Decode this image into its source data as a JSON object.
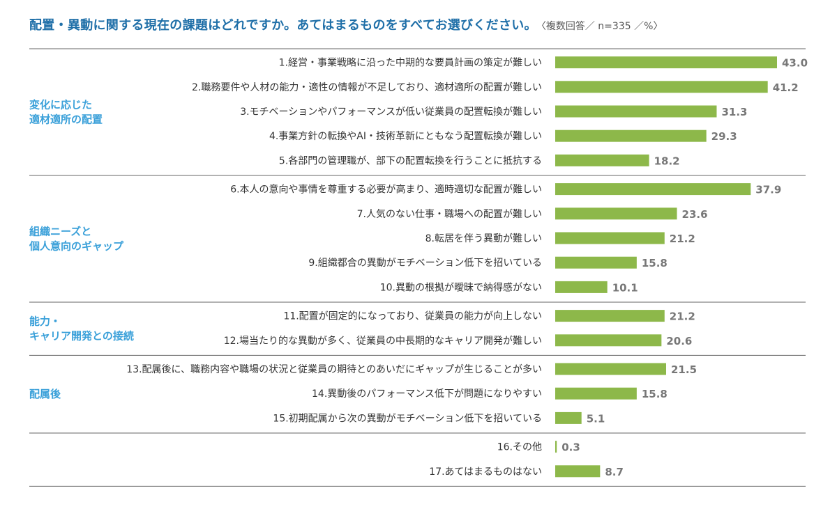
{
  "title": "配置・異動に関する現在の課題はどれですか。あてはまるものをすべてお選びください。",
  "note": "〈複数回答／ n=335 ／%〉",
  "colors": {
    "bar": "#8db84a",
    "title": "#1f6fa8",
    "group": "#3aa0d9",
    "value": "#777777"
  },
  "chart_data": {
    "type": "bar",
    "orientation": "horizontal",
    "xlim": [
      0,
      45
    ],
    "groups": [
      {
        "label": [
          "変化に応じた",
          "適材適所の配置"
        ],
        "items": [
          {
            "label": "1.経営・事業戦略に沿った中期的な要員計画の策定が難しい",
            "value": 43.0,
            "value_text": "43.0"
          },
          {
            "label": "2.職務要件や人材の能力・適性の情報が不足しており、適材適所の配置が難しい",
            "value": 41.2,
            "value_text": "41.2"
          },
          {
            "label": "3.モチベーションやパフォーマンスが低い従業員の配置転換が難しい",
            "value": 31.3,
            "value_text": "31.3"
          },
          {
            "label": "4.事業方針の転換やAI・技術革新にともなう配置転換が難しい",
            "value": 29.3,
            "value_text": "29.3"
          },
          {
            "label": "5.各部門の管理職が、部下の配置転換を行うことに抵抗する",
            "value": 18.2,
            "value_text": "18.2"
          }
        ]
      },
      {
        "label": [
          "組織ニーズと",
          "個人意向のギャップ"
        ],
        "items": [
          {
            "label": "6.本人の意向や事情を尊重する必要が高まり、適時適切な配置が難しい",
            "value": 37.9,
            "value_text": "37.9"
          },
          {
            "label": "7.人気のない仕事・職場への配置が難しい",
            "value": 23.6,
            "value_text": "23.6"
          },
          {
            "label": "8.転居を伴う異動が難しい",
            "value": 21.2,
            "value_text": "21.2"
          },
          {
            "label": "9.組織都合の異動がモチベーション低下を招いている",
            "value": 15.8,
            "value_text": "15.8"
          },
          {
            "label": "10.異動の根拠が曖昧で納得感がない",
            "value": 10.1,
            "value_text": "10.1"
          }
        ]
      },
      {
        "label": [
          "能力・",
          "キャリア開発との接続"
        ],
        "items": [
          {
            "label": "11.配置が固定的になっており、従業員の能力が向上しない",
            "value": 21.2,
            "value_text": "21.2"
          },
          {
            "label": "12.場当たり的な異動が多く、従業員の中長期的なキャリア開発が難しい",
            "value": 20.6,
            "value_text": "20.6"
          }
        ]
      },
      {
        "label": [
          "配属後"
        ],
        "items": [
          {
            "label": "13.配属後に、職務内容や職場の状況と従業員の期待とのあいだにギャップが生じることが多い",
            "value": 21.5,
            "value_text": "21.5"
          },
          {
            "label": "14.異動後のパフォーマンス低下が問題になりやすい",
            "value": 15.8,
            "value_text": "15.8"
          },
          {
            "label": "15.初期配属から次の異動がモチベーション低下を招いている",
            "value": 5.1,
            "value_text": "5.1"
          }
        ]
      },
      {
        "label": [],
        "items": [
          {
            "label": "16.その他",
            "value": 0.3,
            "value_text": "0.3"
          },
          {
            "label": "17.あてはまるものはない",
            "value": 8.7,
            "value_text": "8.7"
          }
        ]
      }
    ]
  }
}
